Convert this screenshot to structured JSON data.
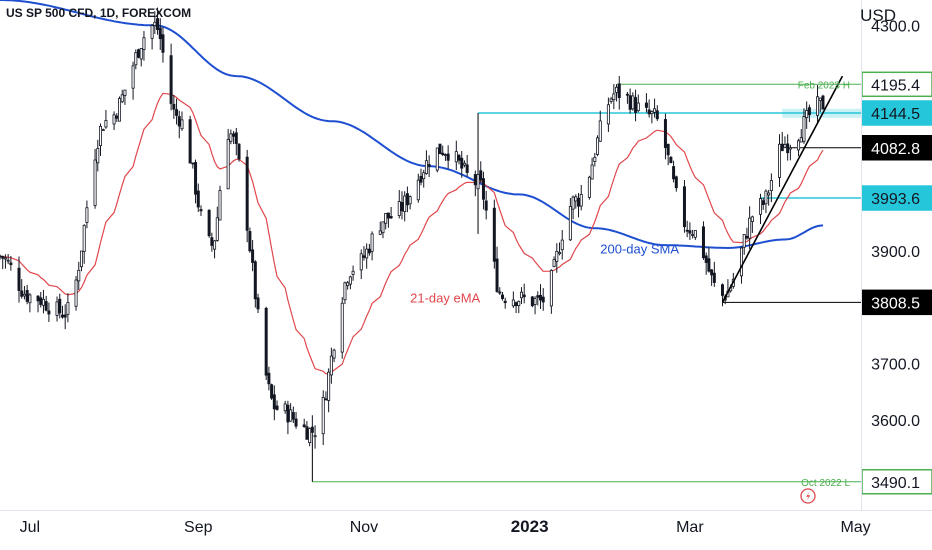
{
  "header": {
    "symbol_line": "US SP 500 CFD, 1D, FOREXCOM",
    "currency": "USD"
  },
  "colors": {
    "candle": "#131722",
    "ema": "#e0474c",
    "sma": "#1f4fd1",
    "cyan_level": "#26c6da",
    "green_level": "#4caf50",
    "black_level": "#000000",
    "trendline": "#000000",
    "highlight_band": "#b2ebf2"
  },
  "chart_data": {
    "type": "candlestick",
    "title": "US SP 500 CFD, 1D, FOREXCOM",
    "ylabel": "USD",
    "ylim": [
      3440,
      4345
    ],
    "y_ticks": [
      "4300.0",
      "3900.0",
      "3700.0",
      "3600.0"
    ],
    "x_ticks": [
      "Jul",
      "Sep",
      "Nov",
      "2023",
      "Mar",
      "May"
    ],
    "x_tick_dates": [
      "2022-07-01",
      "2022-09-01",
      "2022-11-01",
      "2023-01-01",
      "2023-03-01",
      "2023-05-01"
    ],
    "x_range": [
      "2022-06-20",
      "2023-05-03"
    ],
    "price_labels": [
      {
        "value": 4195.4,
        "text": "4195.4",
        "style": "green-outline",
        "note": "Feb 2023 H"
      },
      {
        "value": 4144.5,
        "text": "4144.5",
        "style": "cyan-fill"
      },
      {
        "value": 4082.8,
        "text": "4082.8",
        "style": "black-fill"
      },
      {
        "value": 3993.6,
        "text": "3993.6",
        "style": "cyan-fill"
      },
      {
        "value": 3808.5,
        "text": "3808.5",
        "style": "black-fill"
      },
      {
        "value": 3490.1,
        "text": "3490.1",
        "style": "green-outline",
        "note": "Oct 2022 L"
      }
    ],
    "indicator_labels": [
      {
        "text": "21-day eMA",
        "series": "ema"
      },
      {
        "text": "200-day SMA",
        "series": "sma"
      }
    ],
    "close_anchors": [
      [
        "2022-06-20",
        3890
      ],
      [
        "2022-07-01",
        3820
      ],
      [
        "2022-07-14",
        3790
      ],
      [
        "2022-07-29",
        4130
      ],
      [
        "2022-08-16",
        4300
      ],
      [
        "2022-08-24",
        4140
      ],
      [
        "2022-09-06",
        3910
      ],
      [
        "2022-09-12",
        4110
      ],
      [
        "2022-09-30",
        3620
      ],
      [
        "2022-10-13",
        3580
      ],
      [
        "2022-10-28",
        3870
      ],
      [
        "2022-11-10",
        3960
      ],
      [
        "2022-11-30",
        4080
      ],
      [
        "2022-12-13",
        4020
      ],
      [
        "2022-12-22",
        3820
      ],
      [
        "2023-01-05",
        3810
      ],
      [
        "2023-01-18",
        3990
      ],
      [
        "2023-02-02",
        4180
      ],
      [
        "2023-02-15",
        4140
      ],
      [
        "2023-03-01",
        3940
      ],
      [
        "2023-03-13",
        3820
      ],
      [
        "2023-03-27",
        3980
      ],
      [
        "2023-04-05",
        4090
      ],
      [
        "2023-04-19",
        4160
      ]
    ],
    "sma200_anchors": [
      [
        "2022-06-20",
        4345
      ],
      [
        "2022-08-16",
        4300
      ],
      [
        "2022-09-15",
        4210
      ],
      [
        "2022-10-20",
        4130
      ],
      [
        "2022-11-25",
        4050
      ],
      [
        "2022-12-28",
        4000
      ],
      [
        "2023-01-25",
        3940
      ],
      [
        "2023-02-20",
        3910
      ],
      [
        "2023-03-15",
        3905
      ],
      [
        "2023-04-05",
        3920
      ],
      [
        "2023-04-19",
        3945
      ]
    ],
    "horizontal_levels": [
      {
        "value": 4195.4,
        "from": "2023-02-02",
        "to": "2023-04-25",
        "color": "green"
      },
      {
        "value": 4144.5,
        "from": "2022-12-13",
        "to": "2023-04-25",
        "color": "cyan"
      },
      {
        "value": 4082.8,
        "from": "2023-04-07",
        "to": "2023-04-25",
        "color": "black"
      },
      {
        "value": 3993.6,
        "from": "2023-03-27",
        "to": "2023-04-25",
        "color": "cyan"
      },
      {
        "value": 3808.5,
        "from": "2023-03-13",
        "to": "2023-04-25",
        "color": "black"
      },
      {
        "value": 3490.1,
        "from": "2022-10-13",
        "to": "2023-04-25",
        "color": "green"
      }
    ],
    "trendline": {
      "from": [
        "2023-03-13",
        3808.5
      ],
      "to": [
        "2023-04-21",
        4185
      ]
    },
    "grid": false
  }
}
